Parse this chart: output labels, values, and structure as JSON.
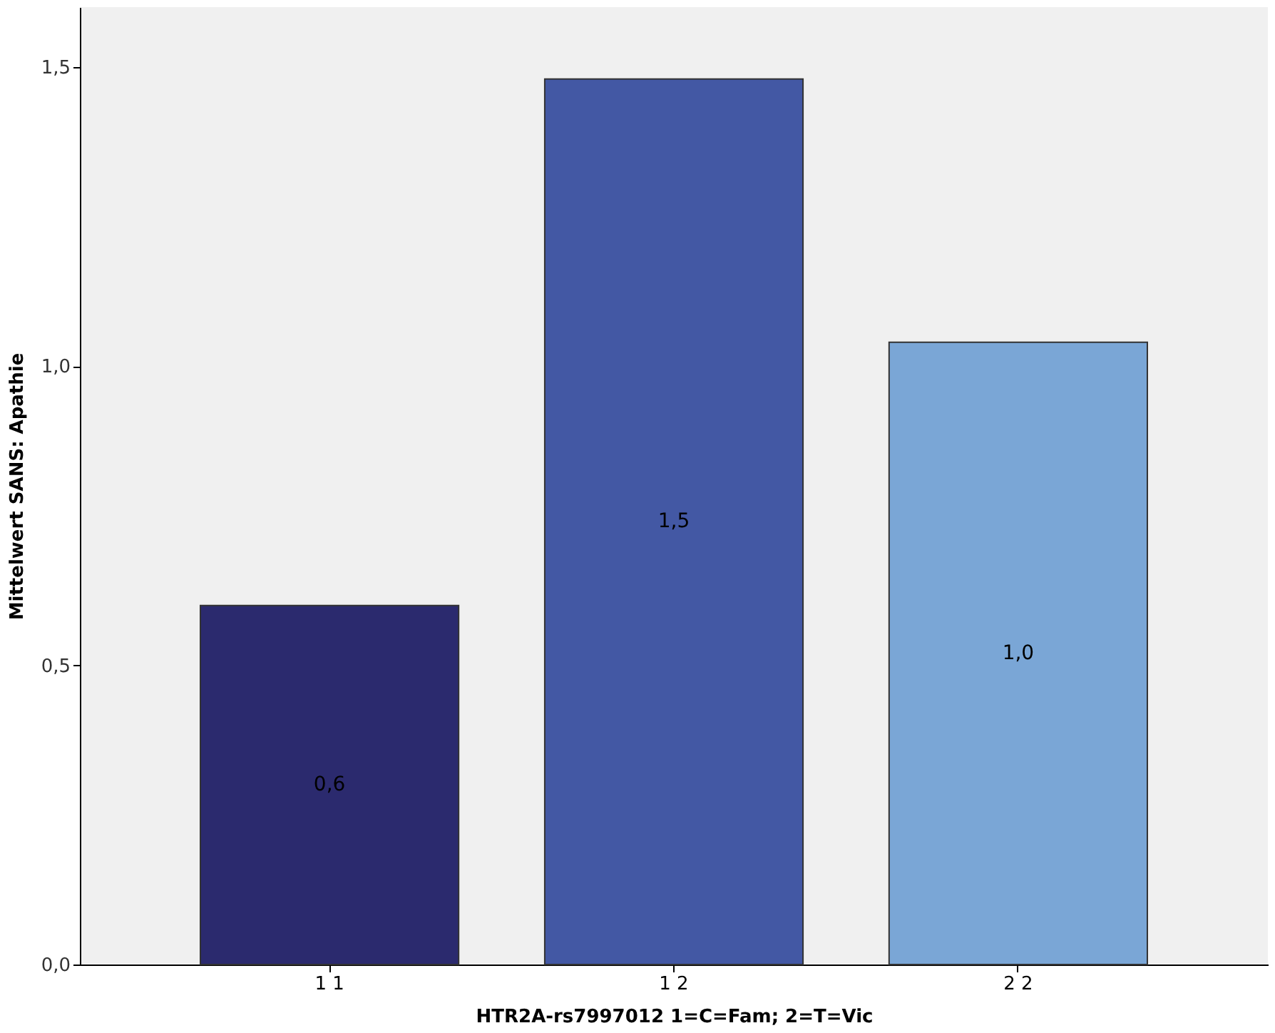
{
  "chart_data": {
    "type": "bar",
    "xlabel": "HTR2A-rs7997012 1=C=Fam; 2=T=Vic",
    "ylabel": "Mittelwert SANS: Apathie",
    "categories": [
      "1 1",
      "1 2",
      "2 2"
    ],
    "values": [
      0.6,
      1.48,
      1.04
    ],
    "colors": [
      "#2b2a6e",
      "#4358a4",
      "#7aa6d6"
    ],
    "value_labels": [
      "0,6",
      "1,5",
      "1,0"
    ],
    "ylim": [
      0,
      1.6
    ],
    "yticks": [
      {
        "value": 0,
        "label": "0,0"
      },
      {
        "value": 0.5,
        "label": "0,5"
      },
      {
        "value": 1,
        "label": "1,0"
      },
      {
        "value": 1.5,
        "label": "1,5"
      }
    ],
    "grid": false
  }
}
